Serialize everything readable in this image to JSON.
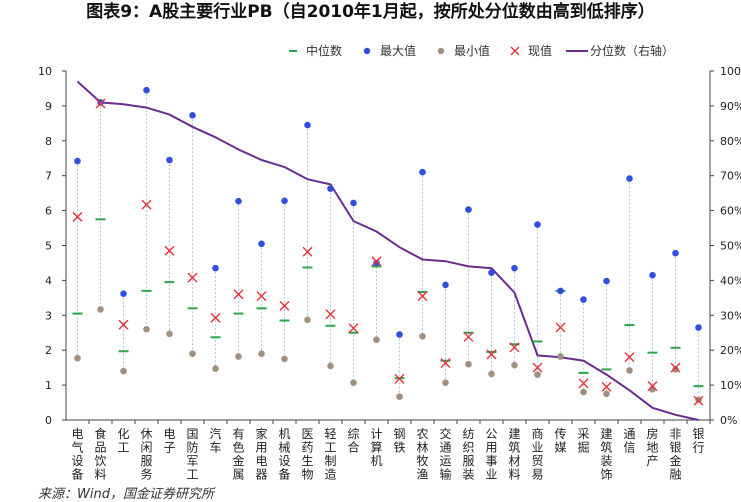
{
  "title": "图表9：A股主要行业PB（自2010年1月起，按所处分位数由高到低排序）",
  "source": "来源：Wind，国金证券研究所",
  "colors": {
    "median": "#2ca64a",
    "max": "#2f4fe0",
    "min": "#a09080",
    "current": "#e8323a",
    "percentile": "#6a2c91",
    "range_line": "#a9c8e8"
  },
  "chart_data": {
    "type": "scatter",
    "title": "图表9：A股主要行业PB（自2010年1月起，按所处分位数由高到低排序）",
    "categories": [
      "电气设备",
      "食品饮料",
      "化工",
      "休闲服务",
      "电子",
      "国防军工",
      "汽车",
      "有色金属",
      "家用电器",
      "机械设备",
      "医药生物",
      "轻工制造",
      "综合",
      "计算机",
      "钢铁",
      "农林牧渔",
      "交通运输",
      "纺织服装",
      "公用事业",
      "建筑材料",
      "商业贸易",
      "传媒",
      "采掘",
      "建筑装饰",
      "通信",
      "房地产",
      "非银金融",
      "银行"
    ],
    "series": [
      {
        "name": "中位数",
        "axis": "left",
        "marker": "dash",
        "values": [
          3.05,
          5.75,
          1.97,
          3.7,
          3.95,
          3.2,
          2.37,
          3.05,
          3.2,
          2.85,
          4.37,
          2.7,
          2.5,
          4.4,
          1.2,
          3.67,
          1.7,
          2.5,
          1.95,
          2.17,
          2.25,
          3.7,
          1.35,
          1.45,
          2.72,
          1.93,
          2.07,
          0.97
        ]
      },
      {
        "name": "最大值",
        "axis": "left",
        "marker": "dot",
        "values": [
          7.42,
          9.1,
          3.62,
          9.45,
          7.45,
          8.73,
          4.35,
          6.27,
          5.05,
          6.28,
          8.45,
          6.63,
          6.22,
          4.5,
          2.45,
          7.1,
          3.87,
          6.03,
          4.22,
          4.35,
          5.6,
          3.7,
          3.45,
          3.98,
          6.92,
          4.15,
          4.78,
          2.65
        ]
      },
      {
        "name": "最小值",
        "axis": "left",
        "marker": "dot",
        "values": [
          1.77,
          3.17,
          1.4,
          2.6,
          2.47,
          1.9,
          1.47,
          1.82,
          1.9,
          1.75,
          2.87,
          1.55,
          1.07,
          2.3,
          0.67,
          2.4,
          1.07,
          1.6,
          1.32,
          1.57,
          1.3,
          1.82,
          0.8,
          0.75,
          1.42,
          0.88,
          1.45,
          0.58
        ]
      },
      {
        "name": "现值",
        "axis": "left",
        "marker": "x",
        "values": [
          5.82,
          9.07,
          2.73,
          6.17,
          4.85,
          4.08,
          2.93,
          3.6,
          3.55,
          3.27,
          4.82,
          3.03,
          2.63,
          4.55,
          1.18,
          3.55,
          1.63,
          2.38,
          1.88,
          2.08,
          1.5,
          2.65,
          1.05,
          0.95,
          1.8,
          0.97,
          1.5,
          0.55
        ]
      },
      {
        "name": "分位数（右轴）",
        "axis": "right",
        "marker": "line",
        "values": [
          97,
          91,
          90.5,
          89.5,
          87.5,
          84,
          81,
          77.5,
          74.5,
          72.5,
          69,
          67.5,
          57,
          54,
          49.5,
          46,
          45.5,
          44,
          43.5,
          36.5,
          18.5,
          18,
          17,
          13,
          8.5,
          3.5,
          1.5,
          0
        ]
      }
    ],
    "yaxis_left": {
      "ylim": [
        0,
        10
      ],
      "ticks": [
        "0",
        "1",
        "2",
        "3",
        "4",
        "5",
        "6",
        "7",
        "8",
        "9",
        "10"
      ]
    },
    "yaxis_right": {
      "ylim": [
        0,
        100
      ],
      "ticks": [
        "0%",
        "10%",
        "20%",
        "30%",
        "40%",
        "50%",
        "60%",
        "70%",
        "80%",
        "90%",
        "100%"
      ]
    },
    "legend_position": "top",
    "grid": false
  }
}
